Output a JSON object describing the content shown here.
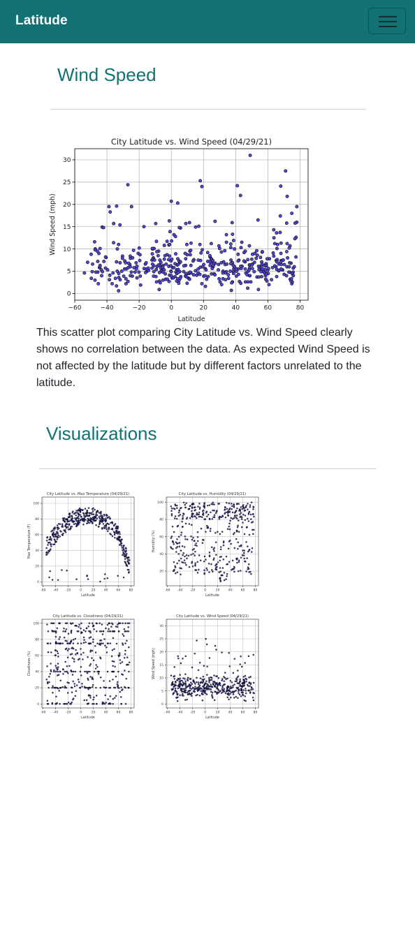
{
  "navbar": {
    "brand": "Latitude",
    "toggler_icon": "hamburger-menu-icon",
    "color": "#127173"
  },
  "wind_section": {
    "heading": "Wind Speed",
    "description": "This scatter plot comparing City Latitude vs. Wind Speed clearly shows no correlation between the data. As expected Wind Speed is not affected by the latitude but by different factors unrelated to the latitude."
  },
  "visualizations": {
    "heading": "Visualizations"
  },
  "chart_data": [
    {
      "id": "main-wind",
      "type": "scatter",
      "title": "City Latitude vs. Wind Speed (04/29/21)",
      "xlabel": "Latitude",
      "ylabel": "Wind Speed (mph)",
      "xlim": [
        -60,
        85
      ],
      "ylim": [
        -1.5,
        32.5
      ],
      "xticks": [
        -60,
        -40,
        -20,
        0,
        20,
        40,
        60,
        80
      ],
      "xtick_labels": [
        "−60",
        "−40",
        "−20",
        "0",
        "20",
        "40",
        "60",
        "80"
      ],
      "yticks": [
        0,
        5,
        10,
        15,
        20,
        25,
        30
      ],
      "ytick_labels": [
        "0",
        "5",
        "10",
        "15",
        "20",
        "25",
        "30"
      ],
      "grid": true,
      "marker_color": "#4b3fe0",
      "notable_points": [
        [
          -54,
          4.6
        ],
        [
          -52,
          7
        ],
        [
          -45,
          9
        ],
        [
          -43,
          14.9
        ],
        [
          -38,
          18.3
        ],
        [
          -34,
          19.6
        ],
        [
          -27,
          24.4
        ],
        [
          -17,
          15
        ],
        [
          0,
          20.7
        ],
        [
          4,
          20.3
        ],
        [
          18,
          25.3
        ],
        [
          19,
          24
        ],
        [
          41,
          24.2
        ],
        [
          43,
          22
        ],
        [
          49,
          31
        ],
        [
          68,
          24.1
        ],
        [
          71,
          27.5
        ],
        [
          72,
          21.8
        ],
        [
          78,
          16
        ]
      ],
      "generated_points": {
        "count": 440,
        "seed": 7,
        "lat_range": [
          -55,
          78
        ],
        "wind_mode": 4.5
      }
    },
    {
      "id": "thumb-maxtemp",
      "type": "scatter",
      "title": "City Latitude vs. Max Temperature (04/29/21)",
      "xlabel": "Latitude",
      "ylabel": "Max Temperature (F)",
      "xlim": [
        -62,
        85
      ],
      "ylim": [
        -5,
        108
      ],
      "xticks": [
        -60,
        -40,
        -20,
        0,
        20,
        40,
        60,
        80
      ],
      "yticks": [
        0,
        20,
        40,
        60,
        80,
        100
      ],
      "grid": true,
      "pattern": "inverted-parabola",
      "peak_lat": 10,
      "peak_value": 84,
      "count": 450,
      "seed": 11
    },
    {
      "id": "thumb-humidity",
      "type": "scatter",
      "title": "City Latitude vs. Humidity (04/29/21)",
      "xlabel": "Latitude",
      "ylabel": "Humidity (%)",
      "xlim": [
        -62,
        85
      ],
      "ylim": [
        3,
        106
      ],
      "xticks": [
        -60,
        -40,
        -20,
        0,
        20,
        40,
        60,
        80
      ],
      "yticks": [
        20,
        40,
        60,
        80,
        100
      ],
      "grid": true,
      "pattern": "high-cluster",
      "count": 450,
      "seed": 23
    },
    {
      "id": "thumb-cloudiness",
      "type": "scatter",
      "title": "City Latitude vs. Cloudiness (04/29/21)",
      "xlabel": "Latitude",
      "ylabel": "Cloudiness (%)",
      "xlim": [
        -62,
        85
      ],
      "ylim": [
        -5,
        105
      ],
      "xticks": [
        -60,
        -40,
        -20,
        0,
        20,
        40,
        60,
        80
      ],
      "yticks": [
        0,
        20,
        40,
        60,
        80,
        100
      ],
      "grid": true,
      "pattern": "banded",
      "bands": [
        0,
        20,
        40,
        75,
        90,
        100
      ],
      "count": 450,
      "seed": 31
    },
    {
      "id": "thumb-wind",
      "type": "scatter",
      "title": "City Latitude vs. Wind Speed (04/29/21)",
      "xlabel": "Latitude",
      "ylabel": "Wind Speed (mph)",
      "xlim": [
        -62,
        85
      ],
      "ylim": [
        -1.5,
        32.5
      ],
      "xticks": [
        -60,
        -40,
        -20,
        0,
        20,
        40,
        60,
        80
      ],
      "yticks": [
        0,
        5,
        10,
        15,
        20,
        25,
        30
      ],
      "grid": true,
      "pattern": "low-skew",
      "count": 450,
      "seed": 47
    }
  ]
}
